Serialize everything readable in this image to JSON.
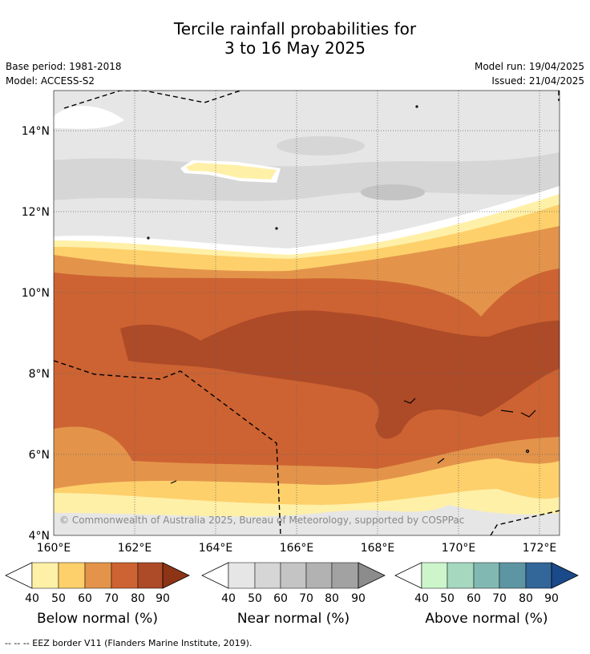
{
  "title_line1": "Tercile rainfall probabilities for",
  "title_line2": "3 to 16 May 2025",
  "base_period": "Base period: 1981-2018",
  "model": "Model: ACCESS-S2",
  "model_run": "Model run: 19/04/2025",
  "issued": "Issued: 21/04/2025",
  "copyright": "© Commonwealth of Australia 2025, Bureau of Meteorology, supported by COSPPac",
  "lon_ticks": [
    "160°E",
    "162°E",
    "164°E",
    "166°E",
    "168°E",
    "170°E",
    "172°E"
  ],
  "lat_ticks": [
    "14°N",
    "12°N",
    "10°N",
    "8°N",
    "6°N",
    "4°N"
  ],
  "colorbars": [
    {
      "label": "Below normal (%)",
      "ticks": [
        "40",
        "50",
        "60",
        "70",
        "80",
        "90"
      ],
      "colors": [
        "#fff0a8",
        "#fdd06b",
        "#e3944a",
        "#cd6332",
        "#ad4a28",
        "#8c3415"
      ]
    },
    {
      "label": "Near normal (%)",
      "ticks": [
        "40",
        "50",
        "60",
        "70",
        "80",
        "90"
      ],
      "colors": [
        "#e6e6e6",
        "#d6d6d6",
        "#c4c4c4",
        "#b2b2b2",
        "#a2a2a2",
        "#8c8c8c"
      ]
    },
    {
      "label": "Above normal (%)",
      "ticks": [
        "40",
        "50",
        "60",
        "70",
        "80",
        "90"
      ],
      "colors": [
        "#ccf5cc",
        "#a6d8c0",
        "#82b8b2",
        "#5e95a2",
        "#336699",
        "#1a4a8a"
      ]
    }
  ],
  "footer": "-- -- -- EEZ border V11 (Flanders Marine Institute, 2019)."
}
